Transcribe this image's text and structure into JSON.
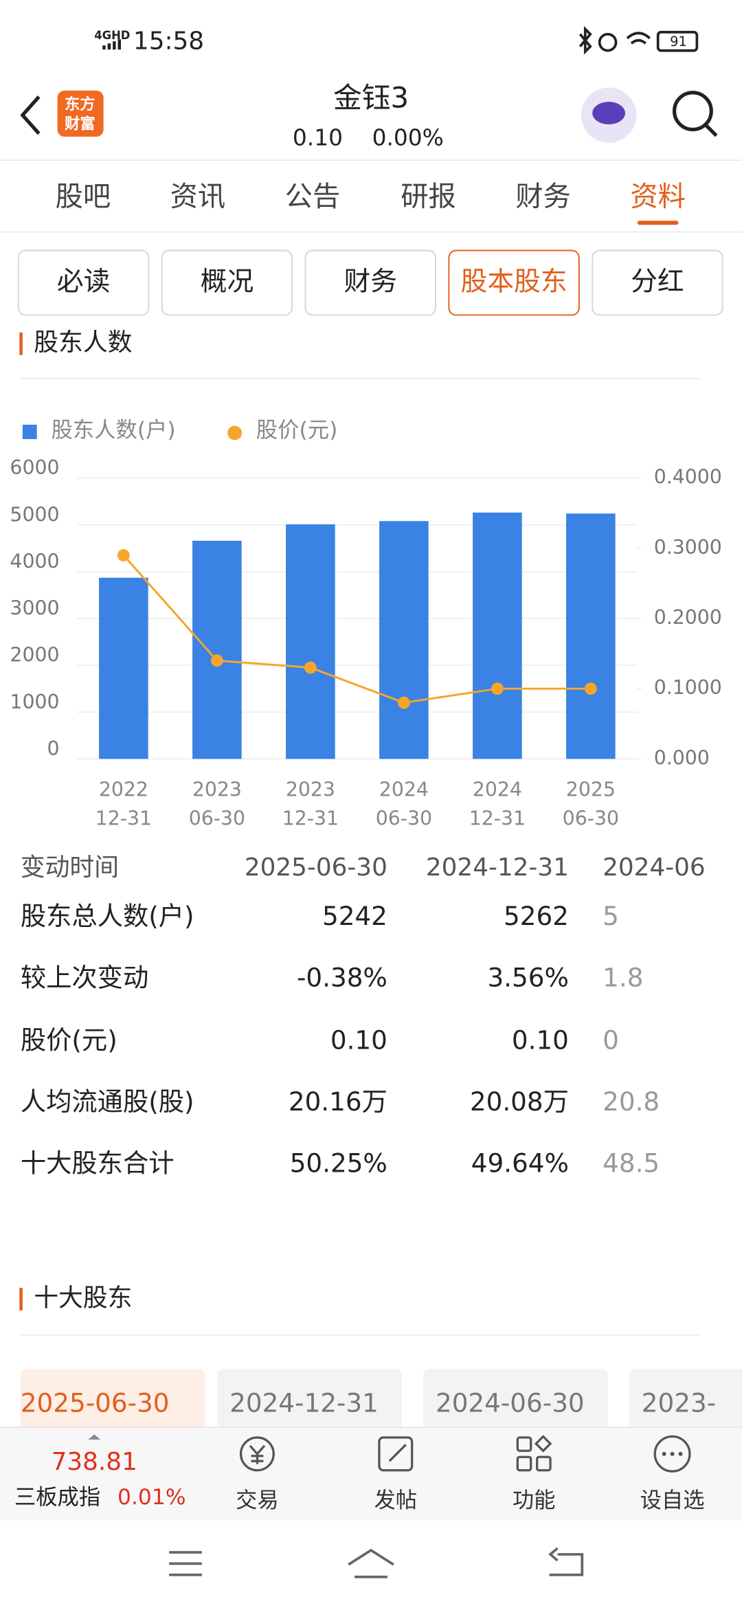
{
  "status_bar": {
    "network": "4GHD",
    "time": "15:58",
    "battery": "91"
  },
  "header": {
    "logo": [
      "东方",
      "财富"
    ],
    "title": "金钰3",
    "price": "0.10",
    "change": "0.00%"
  },
  "tabs": [
    "股吧",
    "资讯",
    "公告",
    "研报",
    "财务",
    "资料"
  ],
  "active_tab": 5,
  "sub_tabs": [
    "必读",
    "概况",
    "财务",
    "股本股东",
    "分红"
  ],
  "active_sub_tab": 3,
  "shareholders": {
    "title": "股东人数",
    "chart_data": {
      "type": "bar",
      "categories": [
        [
          "2022",
          "12-31"
        ],
        [
          "2023",
          "06-30"
        ],
        [
          "2023",
          "12-31"
        ],
        [
          "2024",
          "06-30"
        ],
        [
          "2024",
          "12-31"
        ],
        [
          "2025",
          "06-30"
        ]
      ],
      "series": [
        {
          "name": "股东人数(户)",
          "type": "bar",
          "color": "#3a82e4",
          "values": [
            3870,
            4660,
            5010,
            5080,
            5262,
            5242
          ]
        },
        {
          "name": "股价(元)",
          "type": "line",
          "axis": "y2",
          "color": "#f5a62a",
          "values": [
            0.29,
            0.14,
            0.13,
            0.08,
            0.1,
            0.1
          ]
        }
      ],
      "ylim": [
        0,
        6000
      ],
      "yticks": [
        0,
        1000,
        2000,
        3000,
        4000,
        5000,
        6000
      ],
      "y2lim": [
        0,
        0.4
      ],
      "y2ticks": [
        {
          "value": 0,
          "label": "0.000"
        },
        {
          "value": 0.1,
          "label": "0.1000"
        },
        {
          "value": 0.2,
          "label": "0.2000"
        },
        {
          "value": 0.3,
          "label": "0.3000"
        },
        {
          "value": 0.4,
          "label": "0.4000"
        }
      ],
      "grid": true
    },
    "table": {
      "header": [
        "变动时间",
        "2025-06-30",
        "2024-12-31",
        "2024-06"
      ],
      "rows": [
        [
          "股东总人数(户)",
          "5242",
          "5262",
          "5"
        ],
        [
          "较上次变动",
          "-0.38%",
          "3.56%",
          "1.8"
        ],
        [
          "股价(元)",
          "0.10",
          "0.10",
          "0"
        ],
        [
          "人均流通股(股)",
          "20.16万",
          "20.08万",
          "20.8"
        ],
        [
          "十大股东合计",
          "50.25%",
          "49.64%",
          "48.5"
        ]
      ]
    }
  },
  "top_holders": {
    "title": "十大股东",
    "dates": [
      "2025-06-30",
      "2024-12-31",
      "2024-06-30",
      "2023-"
    ],
    "active_date": 0
  },
  "bottom_bar": {
    "index_value": "738.81",
    "index_name": "三板成指",
    "index_change": "0.01%",
    "actions": [
      "交易",
      "发帖",
      "功能",
      "设自选"
    ]
  }
}
